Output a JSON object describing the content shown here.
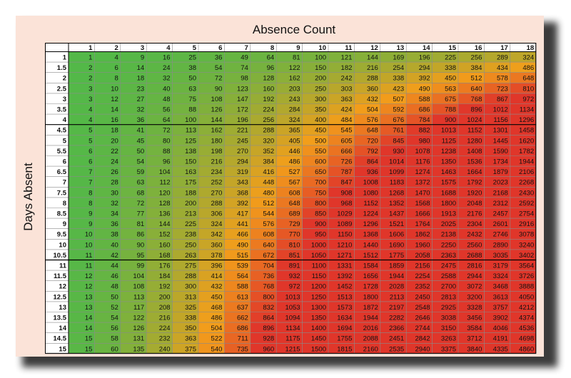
{
  "chart_data": {
    "type": "heatmap",
    "title": "Absence Count",
    "xlabel": "",
    "ylabel": "Days Absent",
    "columns": [
      1,
      2,
      3,
      4,
      5,
      6,
      7,
      8,
      9,
      10,
      11,
      12,
      13,
      14,
      15,
      16,
      17,
      18
    ],
    "rows": [
      "1",
      "1.5",
      "2",
      "2.5",
      "3",
      "3.5",
      "4",
      "4.5",
      "5",
      "5.5",
      "6",
      "6.5",
      "7",
      "7.5",
      "8",
      "8.5",
      "9",
      "9.5",
      "10",
      "10.5",
      "11",
      "11.5",
      "12",
      "12.5",
      "13",
      "13.5",
      "14",
      "14.5",
      "15"
    ],
    "values": [
      [
        1,
        4,
        9,
        16,
        25,
        36,
        49,
        64,
        81,
        100,
        121,
        144,
        169,
        196,
        225,
        256,
        289,
        324
      ],
      [
        2,
        6,
        14,
        24,
        38,
        54,
        74,
        96,
        122,
        150,
        182,
        216,
        254,
        294,
        338,
        384,
        434,
        486
      ],
      [
        2,
        8,
        18,
        32,
        50,
        72,
        98,
        128,
        162,
        200,
        242,
        288,
        338,
        392,
        450,
        512,
        578,
        648
      ],
      [
        3,
        10,
        23,
        40,
        63,
        90,
        123,
        160,
        203,
        250,
        303,
        360,
        423,
        490,
        563,
        640,
        723,
        810
      ],
      [
        3,
        12,
        27,
        48,
        75,
        108,
        147,
        192,
        243,
        300,
        363,
        432,
        507,
        588,
        675,
        768,
        867,
        972
      ],
      [
        4,
        14,
        32,
        56,
        88,
        126,
        172,
        224,
        284,
        350,
        424,
        504,
        592,
        686,
        788,
        896,
        1012,
        1134
      ],
      [
        4,
        16,
        36,
        64,
        100,
        144,
        196,
        256,
        324,
        400,
        484,
        576,
        676,
        784,
        900,
        1024,
        1156,
        1296
      ],
      [
        5,
        18,
        41,
        72,
        113,
        162,
        221,
        288,
        365,
        450,
        545,
        648,
        761,
        882,
        1013,
        1152,
        1301,
        1458
      ],
      [
        5,
        20,
        45,
        80,
        125,
        180,
        245,
        320,
        405,
        500,
        605,
        720,
        845,
        980,
        1125,
        1280,
        1445,
        1620
      ],
      [
        6,
        22,
        50,
        88,
        138,
        198,
        270,
        352,
        446,
        550,
        666,
        792,
        930,
        1078,
        1238,
        1408,
        1590,
        1782
      ],
      [
        6,
        24,
        54,
        96,
        150,
        216,
        294,
        384,
        486,
        600,
        726,
        864,
        1014,
        1176,
        1350,
        1536,
        1734,
        1944
      ],
      [
        7,
        26,
        59,
        104,
        163,
        234,
        319,
        416,
        527,
        650,
        787,
        936,
        1099,
        1274,
        1463,
        1664,
        1879,
        2106
      ],
      [
        7,
        28,
        63,
        112,
        175,
        252,
        343,
        448,
        567,
        700,
        847,
        1008,
        1183,
        1372,
        1575,
        1792,
        2023,
        2268
      ],
      [
        8,
        30,
        68,
        120,
        188,
        270,
        368,
        480,
        608,
        750,
        908,
        1080,
        1268,
        1470,
        1688,
        1920,
        2168,
        2430
      ],
      [
        8,
        32,
        72,
        128,
        200,
        288,
        392,
        512,
        648,
        800,
        968,
        1152,
        1352,
        1568,
        1800,
        2048,
        2312,
        2592
      ],
      [
        9,
        34,
        77,
        136,
        213,
        306,
        417,
        544,
        689,
        850,
        1029,
        1224,
        1437,
        1666,
        1913,
        2176,
        2457,
        2754
      ],
      [
        9,
        36,
        81,
        144,
        225,
        324,
        441,
        576,
        729,
        900,
        1089,
        1296,
        1521,
        1764,
        2025,
        2304,
        2601,
        2916
      ],
      [
        10,
        38,
        86,
        152,
        238,
        342,
        466,
        608,
        770,
        950,
        1150,
        1368,
        1606,
        1862,
        2138,
        2432,
        2746,
        3078
      ],
      [
        10,
        40,
        90,
        160,
        250,
        360,
        490,
        640,
        810,
        1000,
        1210,
        1440,
        1690,
        1960,
        2250,
        2560,
        2890,
        3240
      ],
      [
        11,
        42,
        95,
        168,
        263,
        378,
        515,
        672,
        851,
        1050,
        1271,
        1512,
        1775,
        2058,
        2363,
        2688,
        3035,
        3402
      ],
      [
        11,
        44,
        99,
        176,
        275,
        396,
        539,
        704,
        891,
        1100,
        1331,
        1584,
        1859,
        2156,
        2475,
        2816,
        3179,
        3564
      ],
      [
        12,
        46,
        104,
        184,
        288,
        414,
        564,
        736,
        932,
        1150,
        1392,
        1656,
        1944,
        2254,
        2588,
        2944,
        3324,
        3726
      ],
      [
        12,
        48,
        108,
        192,
        300,
        432,
        588,
        768,
        972,
        1200,
        1452,
        1728,
        2028,
        2352,
        2700,
        3072,
        3468,
        3888
      ],
      [
        13,
        50,
        113,
        200,
        313,
        450,
        613,
        800,
        1013,
        1250,
        1513,
        1800,
        2113,
        2450,
        2813,
        3200,
        3613,
        4050
      ],
      [
        13,
        52,
        117,
        208,
        325,
        468,
        637,
        832,
        1053,
        1300,
        1573,
        1872,
        2197,
        2548,
        2925,
        3328,
        3757,
        4212
      ],
      [
        14,
        54,
        122,
        216,
        338,
        486,
        662,
        864,
        1094,
        1350,
        1634,
        1944,
        2282,
        2646,
        3038,
        3456,
        3902,
        4374
      ],
      [
        14,
        56,
        126,
        224,
        350,
        504,
        686,
        896,
        1134,
        1400,
        1694,
        2016,
        2366,
        2744,
        3150,
        3584,
        4046,
        4536
      ],
      [
        15,
        58,
        131,
        232,
        363,
        522,
        711,
        928,
        1175,
        1450,
        1755,
        2088,
        2451,
        2842,
        3263,
        3712,
        4191,
        4698
      ],
      [
        15,
        60,
        135,
        240,
        375,
        540,
        735,
        960,
        1215,
        1500,
        1815,
        2160,
        2535,
        2940,
        3375,
        3840,
        4335,
        4860
      ]
    ],
    "color_scale": {
      "low": "#52b848",
      "mid": "#f29e1b",
      "high": "#e0362a"
    },
    "grid": true,
    "legend": "none"
  }
}
